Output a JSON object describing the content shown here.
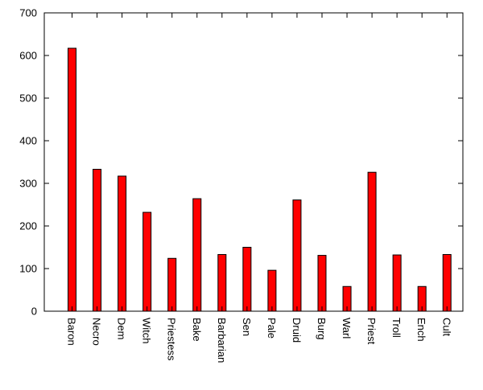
{
  "chart_data": {
    "type": "bar",
    "title": "",
    "xlabel": "",
    "ylabel": "",
    "categories": [
      "Baron",
      "Necro",
      "Dem",
      "Witch",
      "Priestess",
      "Bake",
      "Barbarian",
      "Sen",
      "Pale",
      "Druid",
      "Burg",
      "Warl",
      "Priest",
      "Troll",
      "Ench",
      "Cult"
    ],
    "values": [
      617,
      333,
      317,
      232,
      124,
      264,
      133,
      150,
      96,
      261,
      131,
      58,
      326,
      132,
      58,
      133
    ],
    "ylim": [
      0,
      700
    ],
    "yticks": [
      0,
      100,
      200,
      300,
      400,
      500,
      600,
      700
    ],
    "tick_labels_y": [
      "0",
      "100",
      "200",
      "300",
      "400",
      "500",
      "600",
      "700"
    ],
    "grid": false,
    "legend": "none",
    "bar_color": "#ff0000",
    "bar_edge_color": "#000000"
  }
}
